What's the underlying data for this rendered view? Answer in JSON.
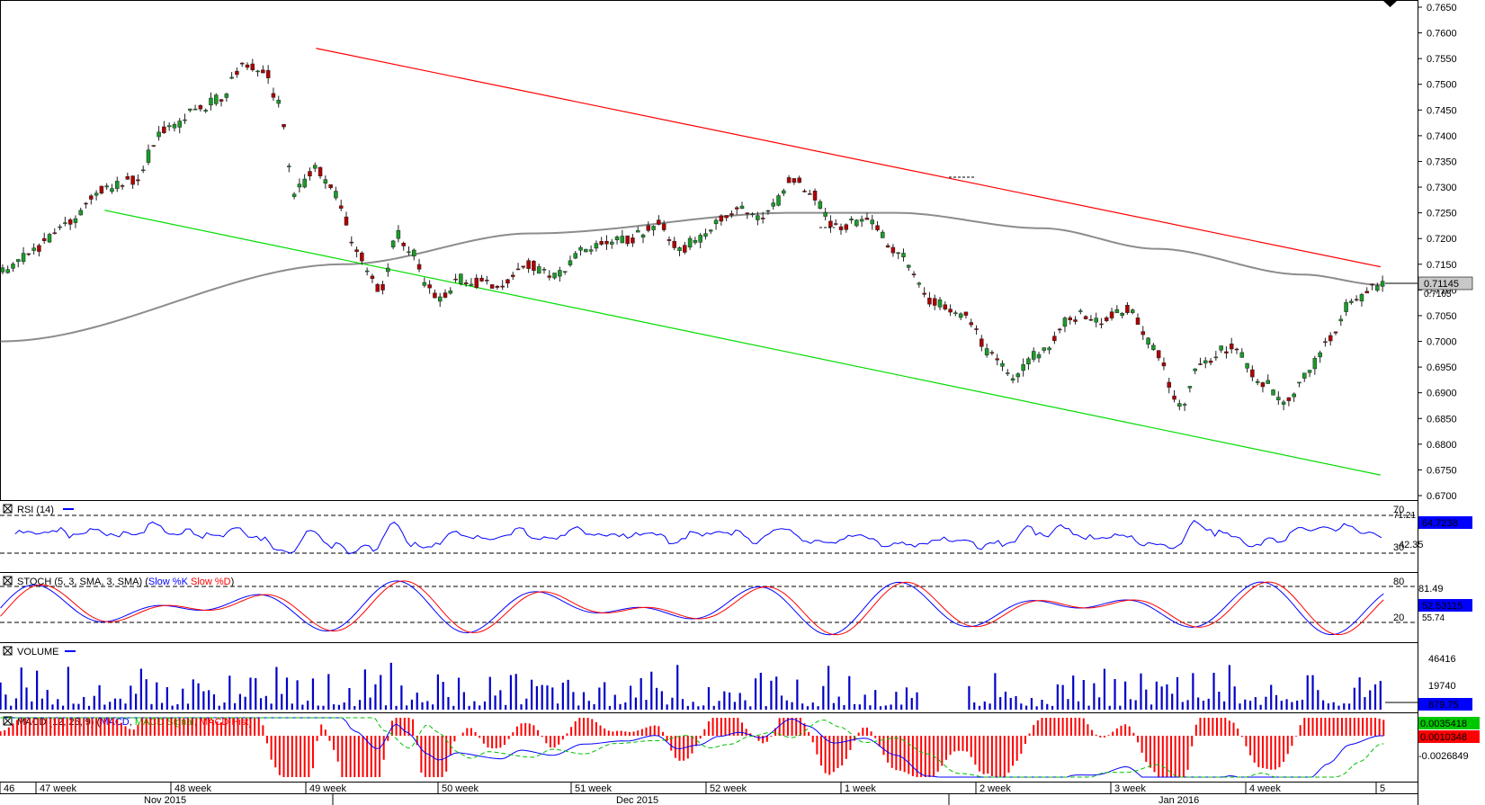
{
  "colors": {
    "up": "#1a9c2a",
    "down": "#b00000",
    "wick": "#202020",
    "ma": "#8c8c8c",
    "channel_top": "#ff0000",
    "channel_bottom": "#00dd00",
    "rsi": "#0000ff",
    "stoch_k": "#0000ff",
    "stoch_d": "#ff0000",
    "volume": "#0000c8",
    "macd": "#0000ff",
    "signal": "#00c000",
    "hist": "#ff0000",
    "price_tag_bg": "#c8c8c8"
  },
  "main_panel": {
    "last_price_label": "0.71145",
    "hidden_tag_fragment": "0.7105"
  },
  "rsi_panel": {
    "title": "RSI (14)",
    "levels": [
      "70",
      "30"
    ],
    "level_values": [
      70,
      30
    ],
    "scale_label": "42.35",
    "top_fragment": "71.21",
    "value_label": "64.7238"
  },
  "stoch_panel": {
    "title_prefix": "STOCH (5, 3, SMA, 3, SMA) (",
    "k_label": "Slow %K",
    "d_label": "Slow %D",
    "title_suffix": ")",
    "levels": [
      "80",
      "20"
    ],
    "level_values": [
      80,
      20
    ],
    "scale_label": "81.49",
    "value_label": "52.53115",
    "lower_fragment": "55.74"
  },
  "volume_panel": {
    "title": "VOLUME",
    "scale_labels": [
      "46416",
      "19740"
    ],
    "scale_values": [
      46416,
      19740
    ],
    "value_label": "879.75"
  },
  "macd_panel": {
    "title_prefix": "MACD (12, 26, 9) (",
    "macd_label": "MACD",
    "signal_label": "MACD Signal",
    "hist_label": "MACD Hist",
    "title_suffix": ")",
    "macd_value_label": "0.0035418",
    "hist_value_label": "0.0010348",
    "scale_label": "-0.0026849",
    "scale_value": -0.0026849
  },
  "time_axis": {
    "weeks": [
      "46",
      "47 week",
      "48 week",
      "49 week",
      "50 week",
      "51 week",
      "52 week",
      "1 week",
      "2 week",
      "3 week",
      "4 week",
      "5"
    ],
    "months": [
      "Nov 2015",
      "Dec 2015",
      "Jan 2016"
    ]
  },
  "chart_data": {
    "type": "candlestick",
    "timeframe_bars_per_week": 30,
    "y_axis": {
      "ticks": [
        "0.7650",
        "0.7600",
        "0.7550",
        "0.7500",
        "0.7450",
        "0.7400",
        "0.7350",
        "0.7300",
        "0.7250",
        "0.7200",
        "0.7150",
        "0.7100",
        "0.7050",
        "0.7000",
        "0.6950",
        "0.6900",
        "0.6850",
        "0.6800",
        "0.6750",
        "0.6700"
      ],
      "ylim": [
        0.67,
        0.765
      ]
    },
    "price_anchors": [
      [
        0,
        0.7135
      ],
      [
        25,
        0.717
      ],
      [
        60,
        0.723
      ],
      [
        100,
        0.73
      ],
      [
        125,
        0.731
      ],
      [
        155,
        0.741
      ],
      [
        185,
        0.745
      ],
      [
        210,
        0.747
      ],
      [
        230,
        0.754
      ],
      [
        250,
        0.753
      ],
      [
        265,
        0.746
      ],
      [
        280,
        0.729
      ],
      [
        300,
        0.734
      ],
      [
        320,
        0.728
      ],
      [
        340,
        0.717
      ],
      [
        362,
        0.71
      ],
      [
        380,
        0.721
      ],
      [
        390,
        0.718
      ],
      [
        410,
        0.71
      ],
      [
        420,
        0.708
      ],
      [
        440,
        0.712
      ],
      [
        480,
        0.711
      ],
      [
        500,
        0.715
      ],
      [
        530,
        0.713
      ],
      [
        560,
        0.718
      ],
      [
        600,
        0.72
      ],
      [
        630,
        0.723
      ],
      [
        650,
        0.718
      ],
      [
        670,
        0.72
      ],
      [
        690,
        0.724
      ],
      [
        710,
        0.726
      ],
      [
        730,
        0.724
      ],
      [
        760,
        0.732
      ],
      [
        775,
        0.729
      ],
      [
        800,
        0.722
      ],
      [
        830,
        0.724
      ],
      [
        860,
        0.717
      ],
      [
        890,
        0.708
      ],
      [
        925,
        0.705
      ],
      [
        945,
        0.698
      ],
      [
        970,
        0.693
      ],
      [
        995,
        0.698
      ],
      [
        1030,
        0.705
      ],
      [
        1055,
        0.704
      ],
      [
        1080,
        0.706
      ],
      [
        1105,
        0.699
      ],
      [
        1130,
        0.687
      ],
      [
        1150,
        0.696
      ],
      [
        1180,
        0.699
      ],
      [
        1210,
        0.692
      ],
      [
        1230,
        0.688
      ],
      [
        1255,
        0.695
      ],
      [
        1275,
        0.701
      ],
      [
        1295,
        0.708
      ],
      [
        1325,
        0.711
      ]
    ],
    "ma_anchors": [
      [
        0,
        0.7
      ],
      [
        330,
        0.715
      ],
      [
        510,
        0.721
      ],
      [
        760,
        0.725
      ],
      [
        860,
        0.725
      ],
      [
        1000,
        0.722
      ],
      [
        1110,
        0.718
      ],
      [
        1250,
        0.713
      ],
      [
        1325,
        0.711
      ]
    ],
    "channel_upper": {
      "from": [
        303,
        0.757
      ],
      "to": [
        1325,
        0.7145
      ]
    },
    "channel_lower": {
      "from": [
        100,
        0.7255
      ],
      "to": [
        1325,
        0.674
      ]
    },
    "last_price": 0.71145
  }
}
